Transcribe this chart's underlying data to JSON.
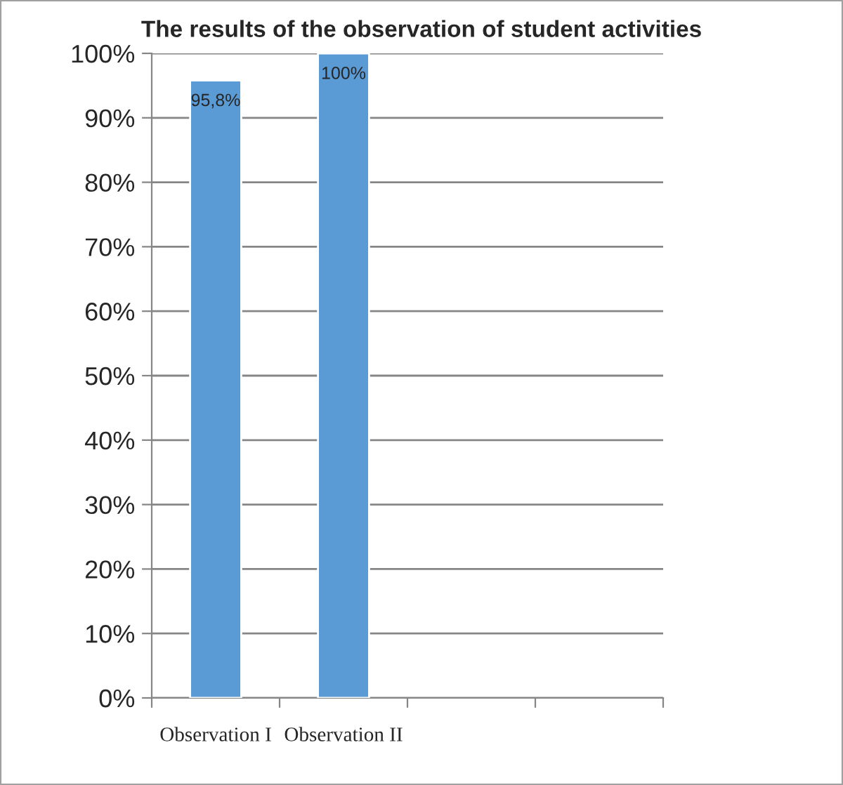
{
  "chart_data": {
    "type": "bar",
    "title": "The results of the observation of student activities",
    "categories": [
      "Observation I",
      "Observation II",
      null,
      null
    ],
    "values": [
      95.8,
      100,
      null,
      null
    ],
    "value_labels": [
      "95,8%",
      "100%",
      null,
      null
    ],
    "color": "#5b9bd5",
    "ylim": [
      0,
      100
    ],
    "yticks": [
      {
        "value": 0,
        "label": "0%"
      },
      {
        "value": 10,
        "label": "10%"
      },
      {
        "value": 20,
        "label": "20%"
      },
      {
        "value": 30,
        "label": "30%"
      },
      {
        "value": 40,
        "label": "40%"
      },
      {
        "value": 50,
        "label": "50%"
      },
      {
        "value": 60,
        "label": "60%"
      },
      {
        "value": 70,
        "label": "70%"
      },
      {
        "value": 80,
        "label": "80%"
      },
      {
        "value": 90,
        "label": "90%"
      },
      {
        "value": 100,
        "label": "100%"
      }
    ],
    "grid": "y",
    "legend": false
  }
}
